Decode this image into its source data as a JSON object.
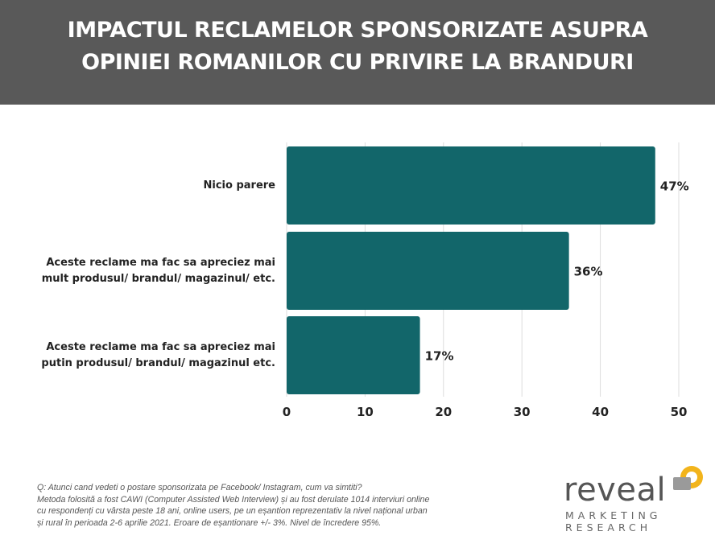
{
  "header": {
    "title_line1": "IMPACTUL RECLAMELOR SPONSORIZATE ASUPRA",
    "title_line2": "OPINIEI ROMANILOR CU PRIVIRE LA BRANDURI"
  },
  "colors": {
    "bar": "#12666a",
    "header_bg": "#595959",
    "grid": "#dddddd",
    "logo_accent": "#f2b41c"
  },
  "chart_data": {
    "type": "bar",
    "orientation": "horizontal",
    "categories": [
      "Nicio parere",
      "Aceste reclame ma fac sa apreciez mai\nmult produsul/ brandul/ magazinul/ etc.",
      "Aceste reclame ma fac sa apreciez mai\nputin produsul/ brandul/ magazinul etc."
    ],
    "values": [
      47,
      36,
      17
    ],
    "data_labels": [
      "47%",
      "36%",
      "17%"
    ],
    "xlim": [
      0,
      50
    ],
    "xticks": [
      "0",
      "10",
      "20",
      "30",
      "40",
      "50"
    ],
    "grid": true,
    "legend": "none"
  },
  "footnote": {
    "lines": [
      "Q: Atunci cand vedeti o postare sponsorizata pe Facebook/ Instagram, cum va simtiti?",
      "Metoda folosită a fost CAWI (Computer Assisted Web Interview) și au fost derulate 1014 interviuri online",
      "cu respondenți cu vârsta peste 18 ani, online users, pe un eșantion reprezentativ la nivel național urban",
      "și rural în perioada 2-6 aprilie 2021. Eroare de eșantionare +/- 3%. Nivel de încredere 95%."
    ]
  },
  "logo": {
    "word": "reveal",
    "sub1": "MARKETING",
    "sub2": "RESEARCH"
  }
}
